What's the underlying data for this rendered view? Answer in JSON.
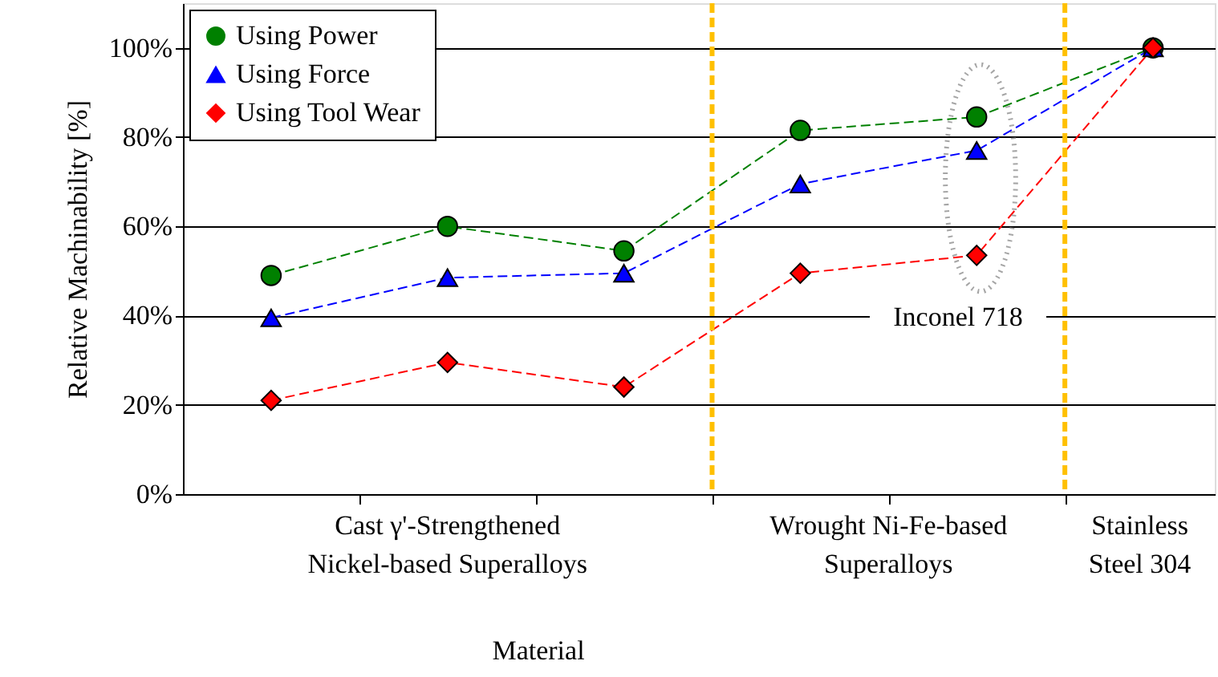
{
  "chart_data": {
    "type": "line",
    "xlabel": "Material",
    "ylabel": "Relative Machinability [%]",
    "categories": [
      null,
      null,
      null,
      null,
      null,
      null
    ],
    "ylim": [
      0,
      110
    ],
    "yticks": [
      {
        "value": 0,
        "label": "0%"
      },
      {
        "value": 20,
        "label": "20%"
      },
      {
        "value": 40,
        "label": "40%"
      },
      {
        "value": 60,
        "label": "60%"
      },
      {
        "value": 80,
        "label": "80%"
      },
      {
        "value": 100,
        "label": "100%"
      }
    ],
    "grid": "y",
    "legend": "top left",
    "line_style": "dashed",
    "series": [
      {
        "name": "Using Power",
        "color": "#008000",
        "marker": "circle",
        "values": [
          49,
          60,
          54.5,
          81.5,
          84.5,
          100
        ]
      },
      {
        "name": "Using Force",
        "color": "#0000ff",
        "marker": "triangle",
        "values": [
          39.5,
          48.5,
          49.5,
          69.5,
          77,
          100
        ]
      },
      {
        "name": "Using Tool Wear",
        "color": "#ff0000",
        "marker": "diamond",
        "values": [
          21,
          29.5,
          24,
          49.5,
          53.5,
          100
        ]
      }
    ],
    "annotations": [
      "Cast γ'-Strengthened\nNickel-based Superalloys",
      "Wrought Ni-Fe-based\nSuperalloys",
      "Stainless\nSteel 304",
      "Inconel 718"
    ]
  }
}
